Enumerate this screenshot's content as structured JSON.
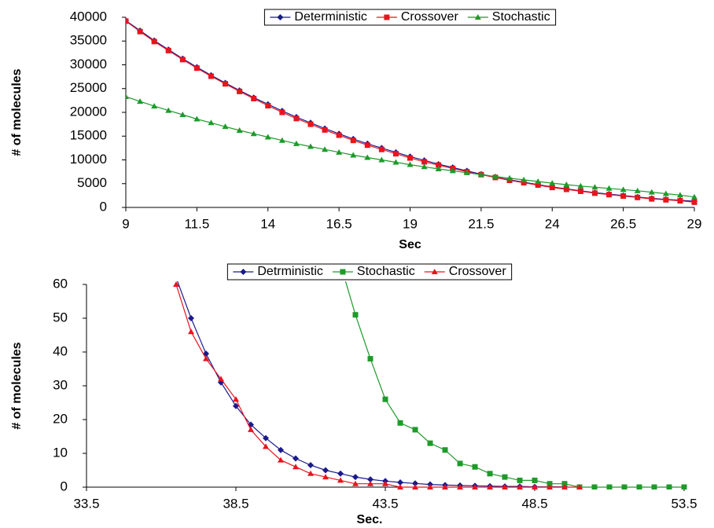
{
  "chart_data": [
    {
      "type": "line",
      "x_label": "Sec",
      "y_label": "# of molecules",
      "x": [
        9,
        9.5,
        10,
        10.5,
        11,
        11.5,
        12,
        12.5,
        13,
        13.5,
        14,
        14.5,
        15,
        15.5,
        16,
        16.5,
        17,
        17.5,
        18,
        18.5,
        19,
        19.5,
        20,
        20.5,
        21,
        21.5,
        22,
        22.5,
        23,
        23.5,
        24,
        24.5,
        25,
        25.5,
        26,
        26.5,
        27,
        27.5,
        28,
        28.5,
        29
      ],
      "series": [
        {
          "name": "Deterministic",
          "color": "#1a1a8c",
          "marker": "diamond",
          "values": [
            39300,
            37200,
            35100,
            33200,
            31300,
            29500,
            27800,
            26200,
            24600,
            23100,
            21700,
            20300,
            19000,
            17800,
            16600,
            15500,
            14400,
            13400,
            12500,
            11600,
            10700,
            9900,
            9100,
            8400,
            7700,
            7000,
            6400,
            5800,
            5300,
            4800,
            4300,
            3900,
            3500,
            3100,
            2800,
            2500,
            2200,
            1900,
            1700,
            1500,
            1300
          ]
        },
        {
          "name": "Crossover",
          "color": "#e8141e",
          "marker": "square",
          "values": [
            39200,
            37000,
            34900,
            33000,
            31100,
            29300,
            27600,
            26000,
            24400,
            22900,
            21400,
            20000,
            18700,
            17500,
            16300,
            15200,
            14100,
            13100,
            12200,
            11300,
            10400,
            9600,
            8900,
            8200,
            7500,
            6900,
            6300,
            5700,
            5200,
            4700,
            4200,
            3800,
            3400,
            3000,
            2700,
            2400,
            2100,
            1800,
            1600,
            1400,
            1100
          ]
        },
        {
          "name": "Stochastic",
          "color": "#1e9a2a",
          "marker": "triangle",
          "values": [
            23300,
            22300,
            21300,
            20400,
            19500,
            18600,
            17800,
            17000,
            16200,
            15500,
            14800,
            14100,
            13400,
            12800,
            12200,
            11600,
            11000,
            10500,
            10000,
            9500,
            9000,
            8550,
            8100,
            7700,
            7300,
            6900,
            6500,
            6150,
            5800,
            5450,
            5100,
            4800,
            4500,
            4250,
            4000,
            3750,
            3500,
            3200,
            2900,
            2600,
            2200
          ]
        }
      ],
      "xlim": [
        9,
        29
      ],
      "xticks": [
        9,
        11.5,
        14,
        16.5,
        19,
        21.5,
        24,
        26.5,
        29
      ],
      "ylim": [
        0,
        40000
      ],
      "yticks": [
        0,
        5000,
        10000,
        15000,
        20000,
        25000,
        30000,
        35000,
        40000
      ],
      "grid": false,
      "legend": "top"
    },
    {
      "type": "line",
      "x_label": "Sec.",
      "y_label": "# of molecules",
      "x": [
        36.5,
        37,
        37.5,
        38,
        38.5,
        39,
        39.5,
        40,
        40.5,
        41,
        41.5,
        42,
        42.5,
        43,
        43.5,
        44,
        44.5,
        45,
        45.5,
        46,
        46.5,
        47,
        47.5,
        48,
        48.5,
        49,
        49.5,
        50,
        50.5,
        51,
        51.5,
        52,
        52.5,
        53,
        53.5
      ],
      "series": [
        {
          "name": "Detrministic",
          "color": "#1a1a8c",
          "marker": "diamond",
          "values": [
            62,
            50,
            39.5,
            31,
            24,
            18.5,
            14.5,
            11,
            8.5,
            6.5,
            5,
            4,
            3,
            2.3,
            1.8,
            1.4,
            1.1,
            0.8,
            0.6,
            0.5,
            0.4,
            0.3,
            0.2,
            0.2,
            0.1,
            0.1,
            0.1,
            null,
            null,
            null,
            null,
            null,
            null,
            null,
            null
          ]
        },
        {
          "name": "Stochastic",
          "color": "#1e9a2a",
          "marker": "square",
          "values": [
            null,
            null,
            null,
            null,
            null,
            null,
            null,
            null,
            null,
            null,
            null,
            66,
            51,
            38,
            26,
            19,
            17,
            13,
            11,
            7,
            6,
            4,
            3,
            2,
            2,
            1,
            1,
            0,
            0,
            0,
            0,
            0,
            0,
            0,
            0
          ]
        },
        {
          "name": "Crossover",
          "color": "#e8141e",
          "marker": "triangle",
          "values": [
            60,
            46,
            38,
            32,
            26,
            17,
            12,
            8,
            6,
            4,
            3,
            2,
            1,
            1,
            1,
            0,
            0,
            0,
            0,
            0,
            0,
            0,
            0,
            0,
            0,
            0,
            0,
            0,
            null,
            null,
            null,
            null,
            null,
            null,
            null
          ]
        }
      ],
      "xlim": [
        33.5,
        53.5
      ],
      "xticks": [
        33.5,
        38.5,
        43.5,
        48.5,
        53.5
      ],
      "ylim": [
        0,
        60
      ],
      "yticks": [
        0,
        10,
        20,
        30,
        40,
        50,
        60
      ],
      "grid": false,
      "legend": "top"
    }
  ]
}
